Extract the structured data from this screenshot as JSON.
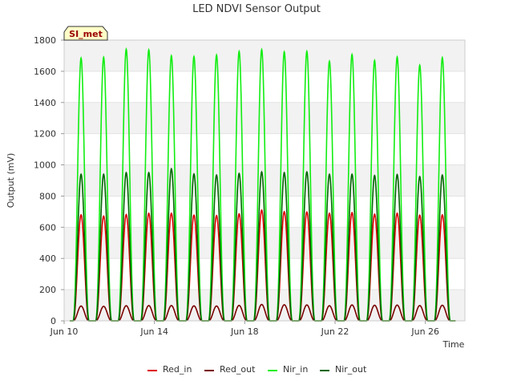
{
  "chart_data": {
    "type": "line",
    "title": "LED NDVI Sensor Output",
    "xlabel": "Time",
    "ylabel": "Output (mV)",
    "site_badge": "SI_met",
    "x_range": [
      "2024-06-10",
      "2024-06-27 18:00"
    ],
    "ylim": [
      0,
      1800
    ],
    "yticks": [
      0,
      200,
      400,
      600,
      800,
      1000,
      1200,
      1400,
      1600,
      1800
    ],
    "xticks": [
      {
        "date": "2024-06-10",
        "label": "Jun 10"
      },
      {
        "date": "2024-06-14",
        "label": "Jun 14"
      },
      {
        "date": "2024-06-18",
        "label": "Jun 18"
      },
      {
        "date": "2024-06-22",
        "label": "Jun 22"
      },
      {
        "date": "2024-06-26",
        "label": "Jun 26"
      }
    ],
    "grid": true,
    "legend_position": "bottom",
    "x": [
      "Jun 10 18:00",
      "Jun 11 18:00",
      "Jun 12 18:00",
      "Jun 13 18:00",
      "Jun 14 18:00",
      "Jun 15 18:00",
      "Jun 16 18:00",
      "Jun 17 18:00",
      "Jun 18 18:00",
      "Jun 19 18:00",
      "Jun 20 18:00",
      "Jun 21 18:00",
      "Jun 22 18:00",
      "Jun 23 18:00",
      "Jun 24 18:00",
      "Jun 25 18:00",
      "Jun 26 18:00"
    ],
    "series": [
      {
        "name": "Red_in",
        "color": "#dd0000",
        "values": [
          680,
          672,
          682,
          690,
          690,
          678,
          675,
          686,
          710,
          700,
          698,
          690,
          694,
          684,
          690,
          678,
          680
        ]
      },
      {
        "name": "Red_out",
        "color": "#7a0000",
        "values": [
          95,
          93,
          97,
          98,
          98,
          96,
          95,
          99,
          105,
          103,
          102,
          97,
          102,
          100,
          101,
          98,
          100
        ]
      },
      {
        "name": "Nir_in",
        "color": "#11ee11",
        "values": [
          1685,
          1690,
          1742,
          1738,
          1700,
          1695,
          1705,
          1728,
          1740,
          1725,
          1728,
          1665,
          1708,
          1670,
          1692,
          1640,
          1688
        ]
      },
      {
        "name": "Nir_out",
        "color": "#006600",
        "values": [
          940,
          940,
          950,
          950,
          975,
          942,
          935,
          945,
          955,
          950,
          955,
          940,
          940,
          932,
          938,
          925,
          935
        ]
      }
    ]
  }
}
